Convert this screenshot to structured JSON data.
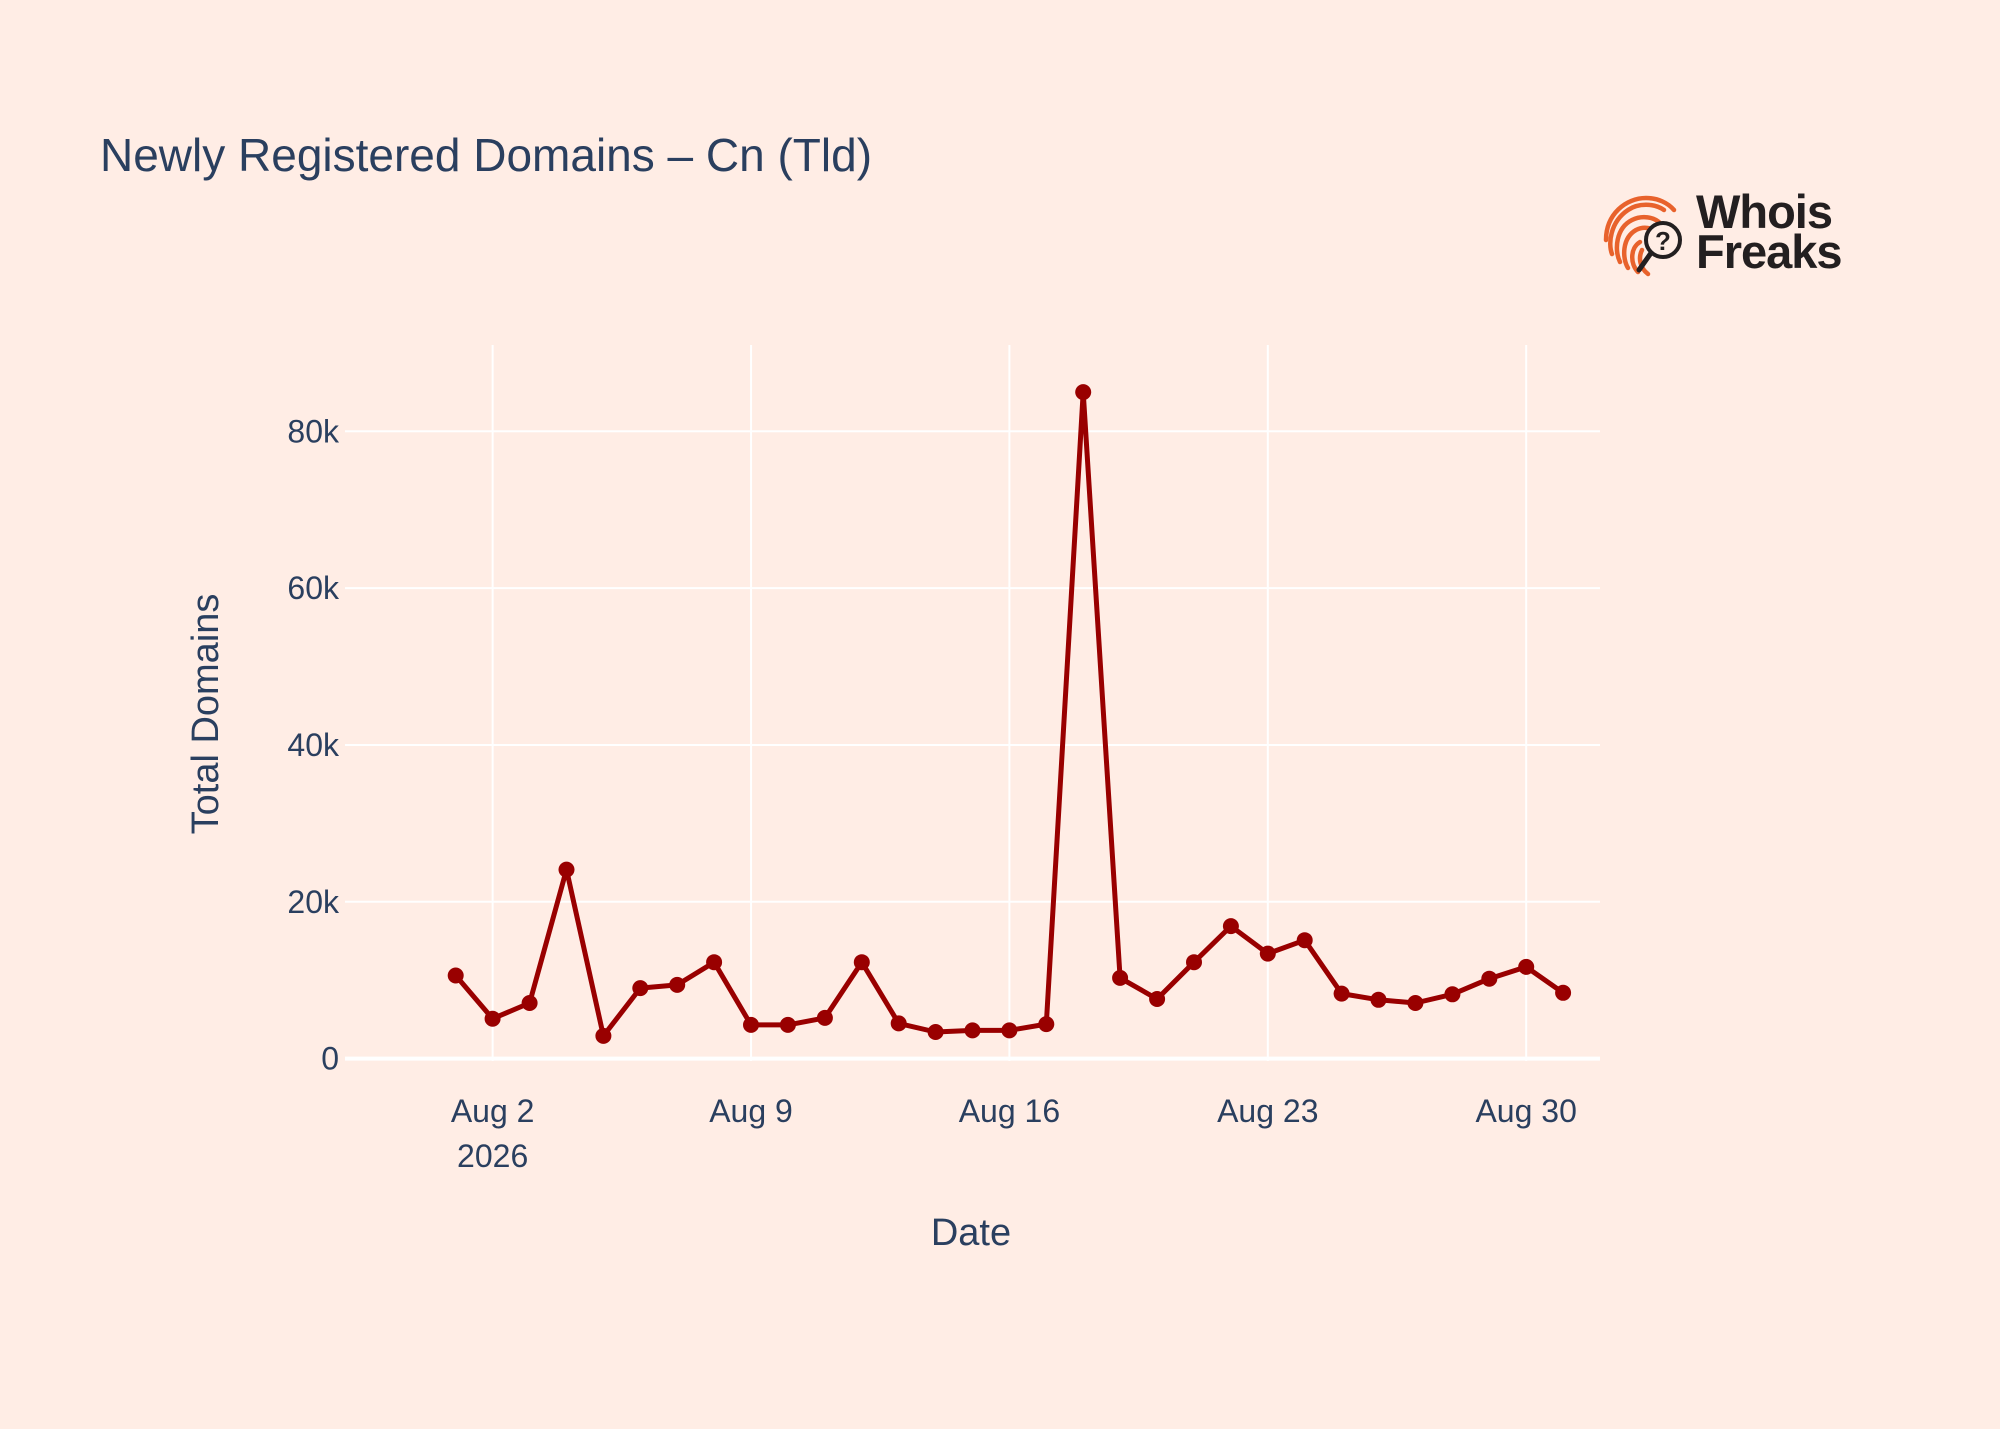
{
  "chart_data": {
    "type": "line",
    "title": "Newly Registered Domains – Cn (Tld)",
    "xlabel": "Date",
    "ylabel": "Total Domains",
    "x_tick_labels": [
      {
        "date": "2026-08-02",
        "label": "Aug 2",
        "sublabel": "2026"
      },
      {
        "date": "2026-08-09",
        "label": "Aug 9",
        "sublabel": ""
      },
      {
        "date": "2026-08-16",
        "label": "Aug 16",
        "sublabel": ""
      },
      {
        "date": "2026-08-23",
        "label": "Aug 23",
        "sublabel": ""
      },
      {
        "date": "2026-08-30",
        "label": "Aug 30",
        "sublabel": ""
      }
    ],
    "y_tick_labels": [
      {
        "value": 0,
        "label": "0"
      },
      {
        "value": 20000,
        "label": "20k"
      },
      {
        "value": 40000,
        "label": "40k"
      },
      {
        "value": 60000,
        "label": "60k"
      },
      {
        "value": 80000,
        "label": "80k"
      }
    ],
    "xlim": [
      "2026-07-29",
      "2026-09-01"
    ],
    "ylim": [
      -300,
      91000
    ],
    "grid": true,
    "series": [
      {
        "color": "#990000",
        "x": [
          "2026-08-01",
          "2026-08-02",
          "2026-08-03",
          "2026-08-04",
          "2026-08-05",
          "2026-08-06",
          "2026-08-07",
          "2026-08-08",
          "2026-08-09",
          "2026-08-10",
          "2026-08-11",
          "2026-08-12",
          "2026-08-13",
          "2026-08-14",
          "2026-08-15",
          "2026-08-16",
          "2026-08-17",
          "2026-08-18",
          "2026-08-19",
          "2026-08-20",
          "2026-08-21",
          "2026-08-22",
          "2026-08-23",
          "2026-08-24",
          "2026-08-25",
          "2026-08-26",
          "2026-08-27",
          "2026-08-28",
          "2026-08-29",
          "2026-08-30",
          "2026-08-31"
        ],
        "y": [
          10600,
          5100,
          7100,
          24100,
          2900,
          9000,
          9400,
          12300,
          4300,
          4300,
          5200,
          12300,
          4500,
          3400,
          3600,
          3600,
          4400,
          85000,
          10300,
          7600,
          12300,
          16900,
          13400,
          15100,
          8300,
          7500,
          7100,
          8200,
          10200,
          11700,
          8400
        ]
      }
    ]
  },
  "logo": {
    "name": "whoisfreaks-logo",
    "text_line1": "Whois",
    "text_line2": "Freaks",
    "colors": {
      "orange": "#e8622c",
      "dark": "#231f20"
    }
  },
  "colors": {
    "background": "#ffede5",
    "grid": "#ffffff",
    "text": "#2a3f5f",
    "line": "#990000"
  }
}
